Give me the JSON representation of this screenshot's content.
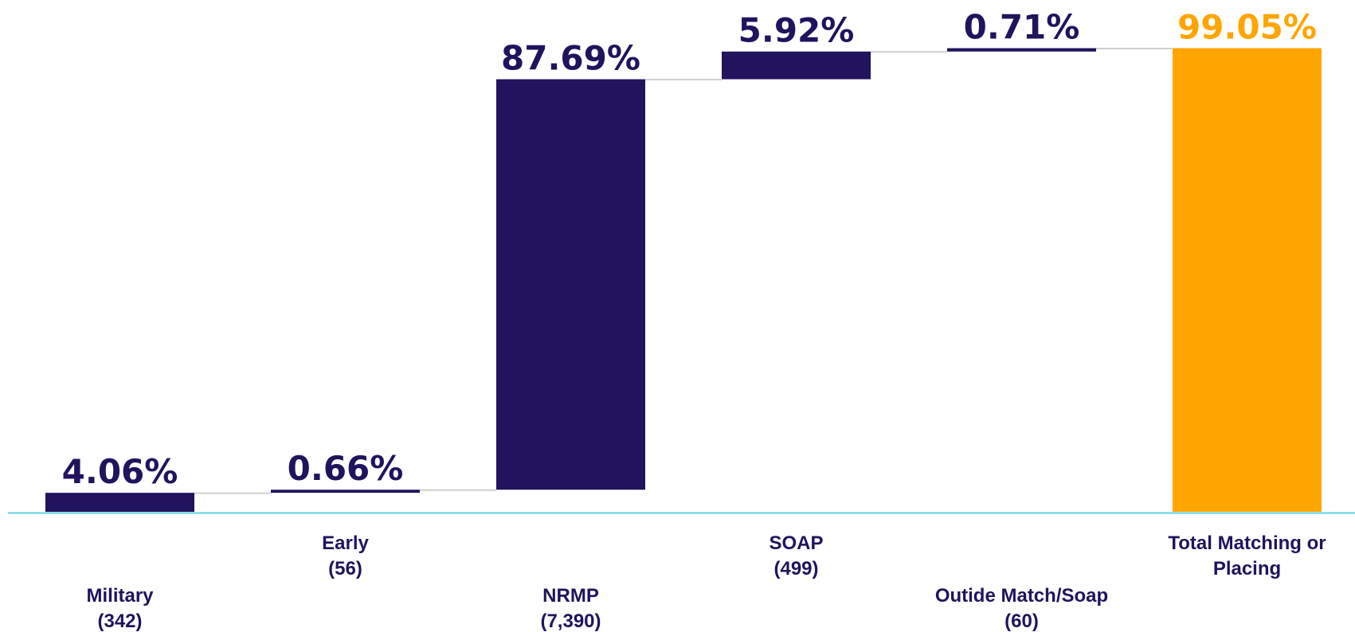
{
  "chart_data": {
    "type": "waterfall",
    "ylim": [
      0,
      100
    ],
    "colors": {
      "step": "#21135e",
      "total": "#ffa500",
      "axis": "#5ed0e2",
      "connector": "#d0d0d0"
    },
    "categories": [
      {
        "name": "Military",
        "count": "(342)",
        "value": 4.06,
        "label": "4.06%",
        "total": false
      },
      {
        "name": "Early",
        "count": "(56)",
        "value": 0.66,
        "label": "0.66%",
        "total": false
      },
      {
        "name": "NRMP",
        "count": "(7,390)",
        "value": 87.69,
        "label": "87.69%",
        "total": false
      },
      {
        "name": "SOAP",
        "count": "(499)",
        "value": 5.92,
        "label": "5.92%",
        "total": false
      },
      {
        "name": "Outide Match/Soap",
        "count": "(60)",
        "value": 0.71,
        "label": "0.71%",
        "total": false
      },
      {
        "name": "Total Matching or Placing",
        "name_lines": [
          "Total Matching or",
          "Placing"
        ],
        "count": "",
        "value": 99.05,
        "label": "99.05%",
        "total": true
      }
    ]
  }
}
